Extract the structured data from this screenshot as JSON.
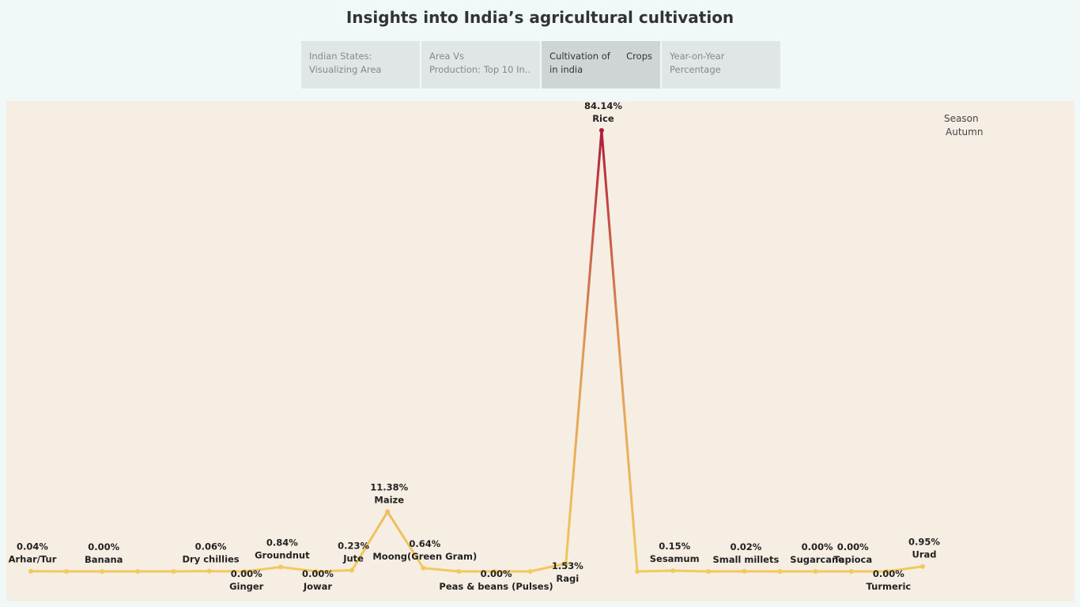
{
  "title": "Insights into India’s agricultural cultivation",
  "tabs": [
    {
      "line1": "Indian States:",
      "line2": "Visualizing Area"
    },
    {
      "line1": "Area Vs",
      "line2": "Production: Top 10 In.."
    },
    {
      "line1": "Cultivation of",
      "line1b": "Crops",
      "line2": "in india"
    },
    {
      "line1": "Year-on-Year",
      "line2": "Percentage"
    }
  ],
  "legend": {
    "title": "Season",
    "value": "Autumn"
  },
  "colors": {
    "low": "#f3c95e",
    "mid": "#e09a55",
    "high": "#b01c3a"
  },
  "chart_data": {
    "type": "line",
    "title": "",
    "xlabel": "",
    "ylabel": "",
    "ylim": [
      0,
      90
    ],
    "points": [
      {
        "crop": "Arhar/Tur",
        "value": 0.04,
        "show_value": "0.04%",
        "show_name": "Arhar/Tur",
        "pos": "above"
      },
      {
        "crop": "",
        "value": 0.0
      },
      {
        "crop": "Banana",
        "value": 0.0,
        "show_value": "0.00%",
        "show_name": "Banana",
        "pos": "above"
      },
      {
        "crop": "",
        "value": 0.0
      },
      {
        "crop": "",
        "value": 0.0
      },
      {
        "crop": "Dry chillies",
        "value": 0.06,
        "show_value": "0.06%",
        "show_name": "Dry chillies",
        "pos": "above"
      },
      {
        "crop": "Ginger",
        "value": 0.0,
        "show_value": "0.00%",
        "show_name": "Ginger",
        "pos": "below"
      },
      {
        "crop": "Groundnut",
        "value": 0.84,
        "show_value": "0.84%",
        "show_name": "Groundnut",
        "pos": "above"
      },
      {
        "crop": "Jowar",
        "value": 0.0,
        "show_value": "0.00%",
        "show_name": "Jowar",
        "pos": "below"
      },
      {
        "crop": "Jute",
        "value": 0.23,
        "show_value": "0.23%",
        "show_name": "Jute",
        "pos": "above"
      },
      {
        "crop": "Maize",
        "value": 11.38,
        "show_value": "11.38%",
        "show_name": "Maize",
        "pos": "above"
      },
      {
        "crop": "Moong(Green Gram)",
        "value": 0.64,
        "show_value": "0.64%",
        "show_name": "Moong(Green Gram)",
        "pos": "above"
      },
      {
        "crop": "",
        "value": 0.0
      },
      {
        "crop": "Peas & beans (Pulses)",
        "value": 0.0,
        "show_value": "0.00%",
        "show_name": "Peas & beans (Pulses)",
        "pos": "below"
      },
      {
        "crop": "",
        "value": 0.0
      },
      {
        "crop": "Ragi",
        "value": 1.53,
        "show_value": "1.53%",
        "show_name": "Ragi",
        "pos": "below"
      },
      {
        "crop": "Rice",
        "value": 84.14,
        "show_value": "84.14%",
        "show_name": "Rice",
        "pos": "above"
      },
      {
        "crop": "",
        "value": 0.0
      },
      {
        "crop": "Sesamum",
        "value": 0.15,
        "show_value": "0.15%",
        "show_name": "Sesamum",
        "pos": "above"
      },
      {
        "crop": "",
        "value": 0.0
      },
      {
        "crop": "Small millets",
        "value": 0.02,
        "show_value": "0.02%",
        "show_name": "Small millets",
        "pos": "above"
      },
      {
        "crop": "",
        "value": 0.0
      },
      {
        "crop": "Sugarcane",
        "value": 0.0,
        "show_value": "0.00%",
        "show_name": "Sugarcane",
        "pos": "above"
      },
      {
        "crop": "Tapioca",
        "value": 0.0,
        "show_value": "0.00%",
        "show_name": "Tapioca",
        "pos": "above"
      },
      {
        "crop": "Turmeric",
        "value": 0.0,
        "show_value": "0.00%",
        "show_name": "Turmeric",
        "pos": "below"
      },
      {
        "crop": "Urad",
        "value": 0.95,
        "show_value": "0.95%",
        "show_name": "Urad",
        "pos": "above"
      }
    ]
  }
}
